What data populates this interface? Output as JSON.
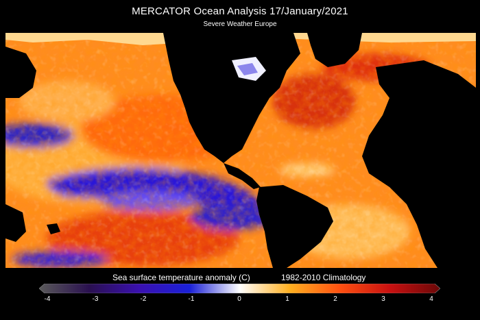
{
  "header": {
    "title": "MERCATOR Ocean Analysis    17/January/2021",
    "subtitle": "Severe Weather Europe"
  },
  "map": {
    "variable": "Sea surface temperature anomaly",
    "land_color": "#000000"
  },
  "colorbar": {
    "label": "Sea surface temperature anomaly (C)",
    "climatology": "1982-2010 Climatology",
    "min": -4,
    "max": 4,
    "ticks": [
      "-4",
      "-3",
      "-2",
      "-1",
      "0",
      "1",
      "2",
      "3",
      "4"
    ],
    "stops": [
      "#5a5a5a",
      "#2a1050",
      "#3a10b0",
      "#1a20d8",
      "#ffffff",
      "#ffb020",
      "#ff5010",
      "#c81010",
      "#6a0808"
    ]
  }
}
